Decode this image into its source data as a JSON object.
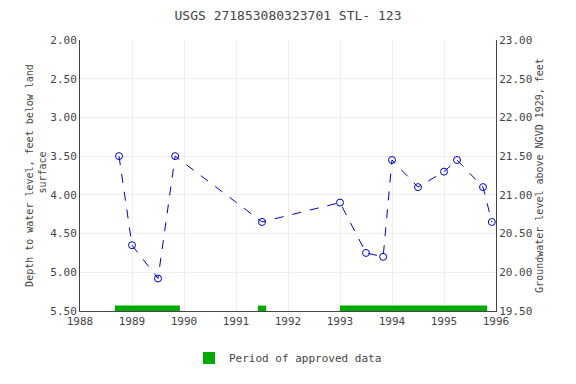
{
  "chart_data": {
    "type": "line",
    "title": "USGS 271853080323701 STL- 123",
    "x": [
      1988.75,
      1989.0,
      1989.5,
      1989.83,
      1991.5,
      1993.0,
      1993.5,
      1993.83,
      1994.0,
      1994.5,
      1995.0,
      1995.25,
      1995.75,
      1995.92
    ],
    "values": [
      3.5,
      4.65,
      5.08,
      3.5,
      4.35,
      4.1,
      4.75,
      4.8,
      3.55,
      3.9,
      3.7,
      3.55,
      3.9,
      4.35
    ],
    "color": "#0000cc",
    "line_style": "dashed",
    "marker": "circle-open",
    "xlim": [
      1988,
      1996
    ],
    "xticks": [
      1988,
      1989,
      1990,
      1991,
      1992,
      1993,
      1994,
      1995,
      1996
    ],
    "ylim": [
      5.5,
      2.0
    ],
    "yticks": [
      {
        "value": 2.0,
        "label": "2.00"
      },
      {
        "value": 2.5,
        "label": "2.50"
      },
      {
        "value": 3.0,
        "label": "3.00"
      },
      {
        "value": 3.5,
        "label": "3.50"
      },
      {
        "value": 4.0,
        "label": "4.00"
      },
      {
        "value": 4.5,
        "label": "4.50"
      },
      {
        "value": 5.0,
        "label": "5.00"
      },
      {
        "value": 5.5,
        "label": "5.50"
      }
    ],
    "y2lim": [
      19.5,
      23.0
    ],
    "y2ticks": [
      {
        "value": 23.0,
        "label": "23.00"
      },
      {
        "value": 22.5,
        "label": "22.50"
      },
      {
        "value": 22.0,
        "label": "22.00"
      },
      {
        "value": 21.5,
        "label": "21.50"
      },
      {
        "value": 21.0,
        "label": "21.00"
      },
      {
        "value": 20.5,
        "label": "20.50"
      },
      {
        "value": 20.0,
        "label": "20.00"
      },
      {
        "value": 19.5,
        "label": "19.50"
      }
    ],
    "ylabel": "Depth to water level, feet below land\n surface",
    "y2label": "Groundwater level above NGVD 1929, feet",
    "grid": true,
    "legend": "bottom",
    "approved_periods": {
      "name": "Period of approved data",
      "color": "#00aa00",
      "ranges": [
        [
          1988.67,
          1989.92
        ],
        [
          1991.42,
          1991.58
        ],
        [
          1993.0,
          1995.83
        ]
      ]
    }
  }
}
